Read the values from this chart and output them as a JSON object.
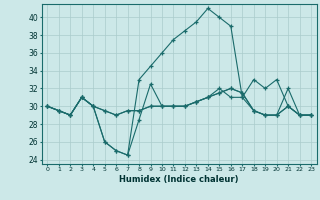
{
  "xlabel": "Humidex (Indice chaleur)",
  "bg_color": "#cce8e8",
  "grid_color": "#aacccc",
  "line_color": "#1a6b6b",
  "xlim": [
    -0.5,
    23.5
  ],
  "ylim": [
    23.5,
    41.5
  ],
  "yticks": [
    24,
    26,
    28,
    30,
    32,
    34,
    36,
    38,
    40
  ],
  "xticks": [
    0,
    1,
    2,
    3,
    4,
    5,
    6,
    7,
    8,
    9,
    10,
    11,
    12,
    13,
    14,
    15,
    16,
    17,
    18,
    19,
    20,
    21,
    22,
    23
  ],
  "series": [
    [
      30,
      29.5,
      29,
      31,
      30,
      26,
      25,
      24.5,
      28.5,
      32.5,
      30,
      30,
      30,
      30.5,
      31,
      32,
      31,
      31,
      29.5,
      29,
      29,
      32,
      29,
      29
    ],
    [
      30,
      29.5,
      29,
      31,
      30,
      26,
      25,
      24.5,
      33,
      34.5,
      36,
      37.5,
      38.5,
      39.5,
      41,
      40,
      39,
      31,
      33,
      32,
      33,
      30,
      29,
      29
    ],
    [
      30,
      29.5,
      29,
      31,
      30,
      29.5,
      29,
      29.5,
      29.5,
      30,
      30,
      30,
      30,
      30.5,
      31,
      31.5,
      32,
      31.5,
      29.5,
      29,
      29,
      30,
      29,
      29
    ],
    [
      30,
      29.5,
      29,
      31,
      30,
      29.5,
      29,
      29.5,
      29.5,
      30,
      30,
      30,
      30,
      30.5,
      31,
      31.5,
      32,
      31.5,
      29.5,
      29,
      29,
      30,
      29,
      29
    ]
  ]
}
